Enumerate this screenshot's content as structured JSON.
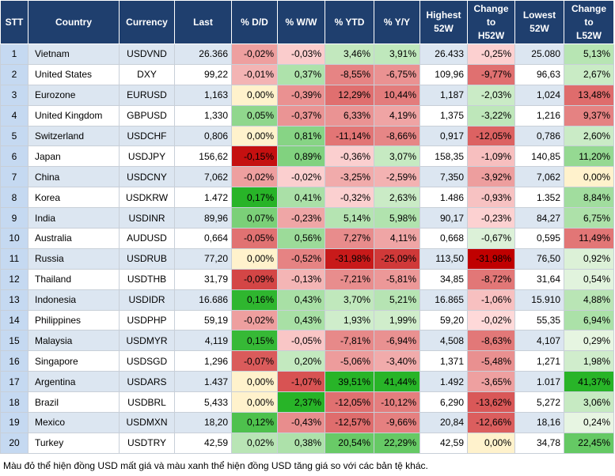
{
  "table": {
    "headers": [
      "STT",
      "Country",
      "Currency",
      "Last",
      "% D/D",
      "% W/W",
      "% YTD",
      "% Y/Y",
      "Highest\n52W",
      "Change\nto\nH52W",
      "Lowest\n52W",
      "Change\nto\nL52W"
    ],
    "rows": [
      [
        "1",
        "Vietnam",
        "USDVND",
        "26.366",
        "-0,02%",
        "-0,03%",
        "3,46%",
        "3,91%",
        "26.433",
        "-0,25%",
        "25.080",
        "5,13%"
      ],
      [
        "2",
        "United States",
        "DXY",
        "99,22",
        "-0,01%",
        "0,37%",
        "-8,55%",
        "-6,75%",
        "109,96",
        "-9,77%",
        "96,63",
        "2,67%"
      ],
      [
        "3",
        "Eurozone",
        "EURUSD",
        "1,163",
        "0,00%",
        "-0,39%",
        "12,29%",
        "10,44%",
        "1,187",
        "-2,03%",
        "1,024",
        "13,48%"
      ],
      [
        "4",
        "United Kingdom",
        "GBPUSD",
        "1,330",
        "0,05%",
        "-0,37%",
        "6,33%",
        "4,19%",
        "1,375",
        "-3,22%",
        "1,216",
        "9,37%"
      ],
      [
        "5",
        "Switzerland",
        "USDCHF",
        "0,806",
        "0,00%",
        "0,81%",
        "-11,14%",
        "-8,66%",
        "0,917",
        "-12,05%",
        "0,786",
        "2,60%"
      ],
      [
        "6",
        "Japan",
        "USDJPY",
        "156,62",
        "-0,15%",
        "0,89%",
        "-0,36%",
        "3,07%",
        "158,35",
        "-1,09%",
        "140,85",
        "11,20%"
      ],
      [
        "7",
        "China",
        "USDCNY",
        "7,062",
        "-0,02%",
        "-0,02%",
        "-3,25%",
        "-2,59%",
        "7,350",
        "-3,92%",
        "7,062",
        "0,00%"
      ],
      [
        "8",
        "Korea",
        "USDKRW",
        "1.472",
        "0,17%",
        "0,41%",
        "-0,32%",
        "2,63%",
        "1.486",
        "-0,93%",
        "1.352",
        "8,84%"
      ],
      [
        "9",
        "India",
        "USDINR",
        "89,96",
        "0,07%",
        "-0,23%",
        "5,14%",
        "5,98%",
        "90,17",
        "-0,23%",
        "84,27",
        "6,75%"
      ],
      [
        "10",
        "Australia",
        "AUDUSD",
        "0,664",
        "-0,05%",
        "0,56%",
        "7,27%",
        "4,11%",
        "0,668",
        "-0,67%",
        "0,595",
        "11,49%"
      ],
      [
        "11",
        "Russia",
        "USDRUB",
        "77,20",
        "0,00%",
        "-0,52%",
        "-31,98%",
        "-25,09%",
        "113,50",
        "-31,98%",
        "76,50",
        "0,92%"
      ],
      [
        "12",
        "Thailand",
        "USDTHB",
        "31,79",
        "-0,09%",
        "-0,13%",
        "-7,21%",
        "-5,81%",
        "34,85",
        "-8,72%",
        "31,64",
        "0,54%"
      ],
      [
        "13",
        "Indonesia",
        "USDIDR",
        "16.686",
        "0,16%",
        "0,43%",
        "3,70%",
        "5,21%",
        "16.865",
        "-1,06%",
        "15.910",
        "4,88%"
      ],
      [
        "14",
        "Philippines",
        "USDPHP",
        "59,19",
        "-0,02%",
        "0,43%",
        "1,93%",
        "1,99%",
        "59,20",
        "-0,02%",
        "55,35",
        "6,94%"
      ],
      [
        "15",
        "Malaysia",
        "USDMYR",
        "4,119",
        "0,15%",
        "-0,05%",
        "-7,81%",
        "-6,94%",
        "4,508",
        "-8,63%",
        "4,107",
        "0,29%"
      ],
      [
        "16",
        "Singapore",
        "USDSGD",
        "1,296",
        "-0,07%",
        "0,20%",
        "-5,06%",
        "-3,40%",
        "1,371",
        "-5,48%",
        "1,271",
        "1,98%"
      ],
      [
        "17",
        "Argentina",
        "USDARS",
        "1.437",
        "0,00%",
        "-1,07%",
        "39,51%",
        "41,44%",
        "1.492",
        "-3,65%",
        "1.017",
        "41,37%"
      ],
      [
        "18",
        "Brazil",
        "USDBRL",
        "5,433",
        "0,00%",
        "2,37%",
        "-12,05%",
        "-10,12%",
        "6,290",
        "-13,62%",
        "5,272",
        "3,06%"
      ],
      [
        "19",
        "Mexico",
        "USDMXN",
        "18,20",
        "0,12%",
        "-0,43%",
        "-12,57%",
        "-9,66%",
        "20,84",
        "-12,66%",
        "18,16",
        "0,24%"
      ],
      [
        "20",
        "Turkey",
        "USDTRY",
        "42,59",
        "0,02%",
        "0,38%",
        "20,54%",
        "22,29%",
        "42,59",
        "0,00%",
        "34,78",
        "22,45%"
      ]
    ],
    "footnote": "Màu đỏ thể hiện đồng USD mất giá và màu xanh thể hiện đồng USD tăng giá so với các bản tệ khác."
  }
}
